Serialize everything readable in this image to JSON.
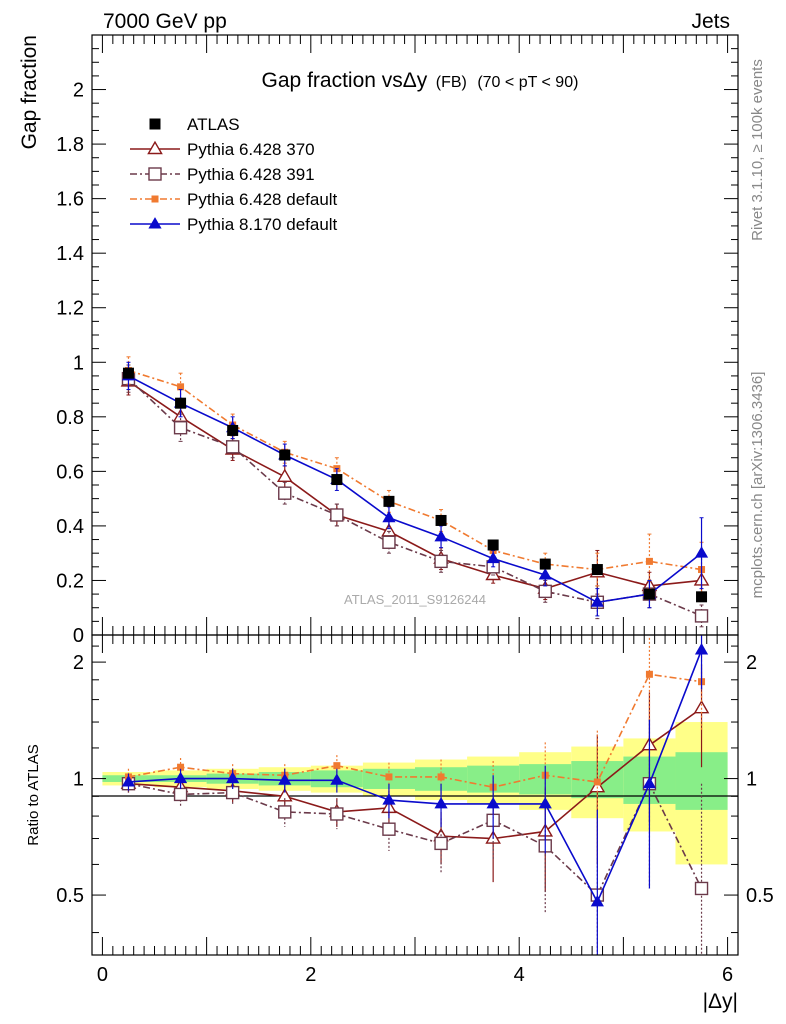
{
  "header": {
    "left": "7000 GeV pp",
    "right": "Jets"
  },
  "side_labels": {
    "rivet": "Rivet 3.1.10, ≥ 100k events",
    "mcplots": "mcplots.cern.ch [arXiv:1306.3436]"
  },
  "chart_data": {
    "type": "line",
    "title": {
      "main": "Gap fraction vsΔy",
      "tag": "(FB)",
      "range": "(70 < pT <  90)"
    },
    "analysis_label": "ATLAS_2011_S9126244",
    "xlabel": "|Δy|",
    "ylabel": "Gap fraction",
    "ratio_ylabel": "Ratio to ATLAS",
    "xlim": [
      -0.1,
      6.1
    ],
    "ylim": [
      0,
      2.2
    ],
    "ratio_ylim": [
      0.35,
      2.35
    ],
    "x_ticks": [
      "0",
      "2",
      "4",
      "6"
    ],
    "y_ticks": [
      "0",
      "0.2",
      "0.4",
      "0.6",
      "0.8",
      "1",
      "1.2",
      "1.4",
      "1.6",
      "1.8",
      "2"
    ],
    "ratio_y_ticks": [
      "0.5",
      "1",
      "2"
    ],
    "x": [
      0.25,
      0.75,
      1.25,
      1.75,
      2.25,
      2.75,
      3.25,
      3.75,
      4.25,
      4.75,
      5.25,
      5.75
    ],
    "data": {
      "name": "ATLAS",
      "color": "#000000",
      "values": [
        0.96,
        0.85,
        0.75,
        0.66,
        0.57,
        0.49,
        0.42,
        0.33,
        0.26,
        0.24,
        0.15,
        0.14
      ],
      "band_green": [
        0.02,
        0.02,
        0.03,
        0.04,
        0.05,
        0.06,
        0.07,
        0.08,
        0.09,
        0.11,
        0.14,
        0.17
      ],
      "band_yellow": [
        0.04,
        0.05,
        0.06,
        0.07,
        0.08,
        0.1,
        0.12,
        0.14,
        0.17,
        0.21,
        0.27,
        0.4
      ]
    },
    "series": [
      {
        "name": "Pythia 6.428 370",
        "color": "#8b1a1a",
        "marker": "open-triangle",
        "dash": "",
        "values": [
          0.93,
          0.8,
          0.68,
          0.58,
          0.44,
          0.38,
          0.28,
          0.22,
          0.17,
          0.23,
          0.18,
          0.2
        ],
        "errors": [
          0.05,
          0.05,
          0.04,
          0.04,
          0.04,
          0.04,
          0.04,
          0.03,
          0.04,
          0.08,
          0.05,
          0.05
        ],
        "ratio": [
          0.97,
          0.95,
          0.93,
          0.9,
          0.82,
          0.84,
          0.71,
          0.7,
          0.73,
          0.95,
          1.22,
          1.52
        ],
        "ratio_errors": [
          0.05,
          0.06,
          0.06,
          0.07,
          0.07,
          0.09,
          0.11,
          0.16,
          0.22,
          0.35,
          0.45,
          0.45
        ]
      },
      {
        "name": "Pythia 6.428 391",
        "color": "#6b3a4a",
        "marker": "open-square",
        "dash": "7,3,2,3",
        "values": [
          0.94,
          0.76,
          0.69,
          0.52,
          0.44,
          0.34,
          0.27,
          0.25,
          0.16,
          0.12,
          0.15,
          0.07
        ],
        "errors": [
          0.05,
          0.05,
          0.04,
          0.04,
          0.04,
          0.04,
          0.04,
          0.03,
          0.04,
          0.06,
          0.05,
          0.04
        ],
        "ratio": [
          0.97,
          0.91,
          0.92,
          0.82,
          0.81,
          0.74,
          0.68,
          0.78,
          0.67,
          0.5,
          0.97,
          0.52
        ],
        "ratio_errors": [
          0.05,
          0.06,
          0.06,
          0.07,
          0.07,
          0.09,
          0.11,
          0.16,
          0.22,
          0.35,
          0.45,
          0.45
        ]
      },
      {
        "name": "Pythia 6.428 default",
        "color": "#f07a30",
        "marker": "filled-square",
        "dash": "7,3,2,3",
        "values": [
          0.97,
          0.91,
          0.77,
          0.67,
          0.61,
          0.49,
          0.42,
          0.31,
          0.26,
          0.24,
          0.27,
          0.24
        ],
        "errors": [
          0.05,
          0.05,
          0.04,
          0.04,
          0.04,
          0.04,
          0.04,
          0.03,
          0.04,
          0.06,
          0.1,
          0.1
        ],
        "ratio": [
          1.01,
          1.07,
          1.03,
          1.02,
          1.08,
          1.01,
          1.01,
          0.95,
          1.02,
          0.98,
          1.86,
          1.78
        ],
        "ratio_errors": [
          0.05,
          0.06,
          0.06,
          0.07,
          0.07,
          0.09,
          0.11,
          0.16,
          0.22,
          0.35,
          0.45,
          0.45
        ]
      },
      {
        "name": "Pythia 8.170 default",
        "color": "#0a0acc",
        "marker": "filled-triangle",
        "dash": "",
        "values": [
          0.95,
          0.85,
          0.76,
          0.66,
          0.57,
          0.43,
          0.36,
          0.28,
          0.22,
          0.12,
          0.15,
          0.3
        ],
        "errors": [
          0.05,
          0.05,
          0.04,
          0.04,
          0.04,
          0.04,
          0.04,
          0.03,
          0.04,
          0.05,
          0.05,
          0.13
        ],
        "ratio": [
          0.98,
          1.0,
          1.0,
          0.99,
          0.99,
          0.88,
          0.86,
          0.86,
          0.86,
          0.48,
          0.97,
          2.15
        ],
        "ratio_errors": [
          0.05,
          0.06,
          0.06,
          0.07,
          0.07,
          0.09,
          0.11,
          0.16,
          0.22,
          0.35,
          0.45,
          0.45
        ]
      }
    ]
  }
}
